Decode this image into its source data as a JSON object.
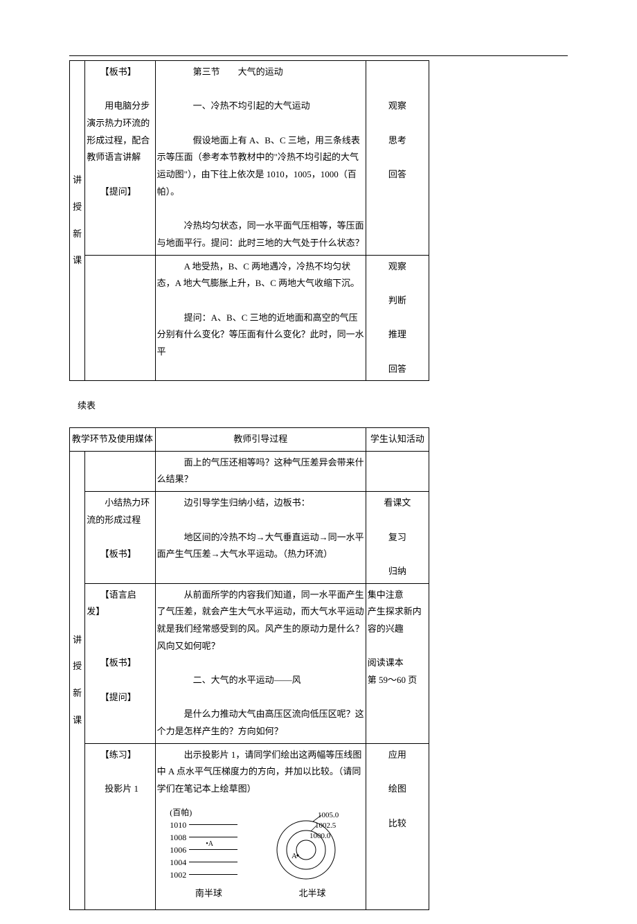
{
  "table1": {
    "vcol_chars": [
      "讲",
      "授",
      "新",
      "课"
    ],
    "rows": [
      {
        "media": "　　【板书】\n\n　　用电脑分步演示热力环流的形成过程，配合教师语言讲解\n\n　　【提问】",
        "guide": "　　　　第三节　　大气的运动\n\n　　　　一、冷热不均引起的大气运动\n\n　　　　假设地面上有 A、B、C 三地，用三条线表示等压面（参考本节教材中的\"冷热不均引起的大气运动图\"），由下往上依次是 1010，1005，1000（百帕）。\n\n　　　冷热均匀状态，同一水平面气压相等，等压面与地面平行。提问：此时三地的大气处于什么状态？",
        "student": "\n\n观察\n\n思考\n\n回答"
      },
      {
        "media": "",
        "guide": "　　　A 地受热，B、C 两地遇冷，冷热不均匀状态，A 地大气膨胀上升，B、C 两地大气收缩下沉。\n\n　　　提问：A、B、C 三地的近地面和高空的气压分别有什么变化？等压面有什么变化？此时，同一水平",
        "student": "观察\n\n判断\n\n推理\n\n回答"
      }
    ]
  },
  "continue_label": "续表",
  "table2": {
    "header": {
      "col_left": "教学环节及使用媒体",
      "col_mid": "教师引导过程",
      "col_right": "学生认知活动"
    },
    "vcol_chars": [
      "讲",
      "授",
      "新",
      "课"
    ],
    "rows": [
      {
        "media": "",
        "guide": "　　　面上的气压还相等吗？这种气压差异会带来什么结果？",
        "student": ""
      },
      {
        "media": "　　小结热力环流的形成过程\n\n　　【板书】",
        "guide": "　　　边引导学生归纳小结，边板书：\n\n　　　地区间的冷热不均→大气垂直运动→同一水平面产生气压差→大气水平运动。（热力环流）",
        "student": "看课文\n\n复习\n\n归纳"
      },
      {
        "media": "　　【语言启发】\n\n\n　　【板书】\n\n　　【提问】",
        "guide": "　　　从前面所学的内容我们知道，同一水平面产生了气压差，就会产生大气水平运动，而大气水平运动就是我们经常感受到的风。风产生的原动力是什么？风向又如何呢？\n\n　　　　二、大气的水平运动——风\n\n　　　是什么力推动大气由高压区流向低压区呢？这个力是怎样产生的？方向如何？",
        "student": "集中注意\n产生探求新内容的兴趣\n\n阅读课本\n第 59～60 页"
      },
      {
        "media": "　　【练习】\n\n　　投影片 1",
        "guide_intro": "　　　出示投影片 1，请同学们绘出这两幅等压线图中 A 点水平气压梯度力的方向，并加以比较。（请同学们在笔记本上绘草图）",
        "student": "应用\n\n绘图\n\n比较",
        "fig_left": {
          "unit": "(百帕)",
          "levels": [
            "1010",
            "1008",
            "1006",
            "1004",
            "1002"
          ],
          "point_label": "A",
          "point_on_index": 2,
          "caption": "南半球"
        },
        "fig_right": {
          "circles": [
            "1005.0",
            "1002.5",
            "1000.0"
          ],
          "point_label": "A",
          "caption": "北半球"
        }
      }
    ]
  },
  "colors": {
    "text": "#000000",
    "border": "#000000",
    "bg": "#ffffff"
  }
}
